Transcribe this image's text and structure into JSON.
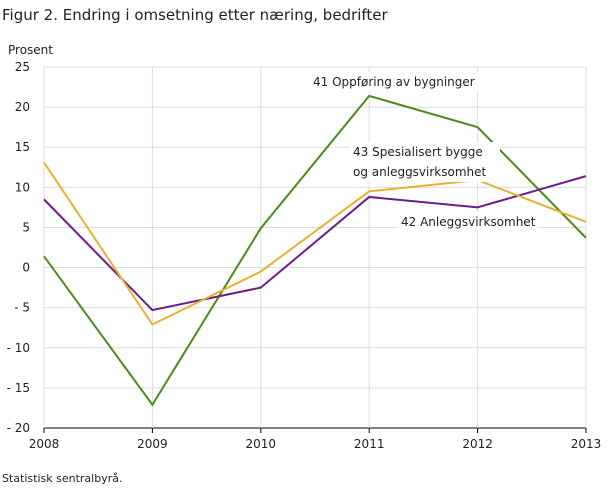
{
  "chart_data": {
    "type": "line",
    "title": "Figur 2. Endring i omsetning etter næring, bedrifter",
    "y_label": "Prosent",
    "source": "Statistisk sentralbyrå.",
    "x": [
      2008,
      2009,
      2010,
      2011,
      2012,
      2013
    ],
    "xlim": [
      2008,
      2013
    ],
    "xticks": [
      2008,
      2009,
      2010,
      2011,
      2012,
      2013
    ],
    "ylim": [
      -20,
      25
    ],
    "yticks": [
      {
        "value": -20,
        "label": "- 20"
      },
      {
        "value": -15,
        "label": "- 15"
      },
      {
        "value": -10,
        "label": "- 10"
      },
      {
        "value": -5,
        "label": "- 5"
      },
      0,
      5,
      10,
      15,
      20,
      25
    ],
    "grid": true,
    "series": [
      {
        "name": "41 Oppføring av bygninger",
        "color": "#4b8b1a",
        "values": [
          1.4,
          -17.1,
          4.9,
          21.4,
          17.5,
          3.7
        ]
      },
      {
        "name": "42 Anleggsvirksomhet",
        "color": "#6b1d88",
        "values": [
          8.5,
          -5.3,
          -2.5,
          8.8,
          7.5,
          11.4
        ]
      },
      {
        "name": "43 Spesialisert bygge og anleggsvirksomhet",
        "color": "#e8b030",
        "values": [
          13.1,
          -7.1,
          -0.5,
          9.5,
          10.9,
          5.7
        ]
      }
    ]
  }
}
